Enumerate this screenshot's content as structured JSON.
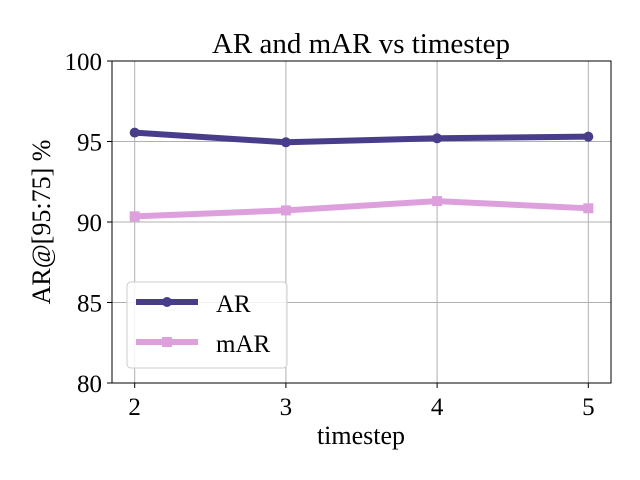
{
  "chart_data": {
    "type": "line",
    "title": "AR and mAR vs timestep",
    "xlabel": "timestep",
    "ylabel": "AR@[95:75] %",
    "x": [
      2,
      3,
      4,
      5
    ],
    "x_ticks": [
      "2",
      "3",
      "4",
      "5"
    ],
    "xlim": [
      1.85,
      5.15
    ],
    "ylim": [
      80,
      100
    ],
    "y_ticks": [
      "80",
      "85",
      "90",
      "95",
      "100"
    ],
    "grid": true,
    "legend_position": "lower-left",
    "series": [
      {
        "name": "AR",
        "values": [
          95.55,
          94.95,
          95.2,
          95.3
        ],
        "color": "#483d8b",
        "marker": "circle"
      },
      {
        "name": "mAR",
        "values": [
          90.35,
          90.72,
          91.3,
          90.85
        ],
        "color": "#dda0dd",
        "marker": "square"
      }
    ]
  }
}
